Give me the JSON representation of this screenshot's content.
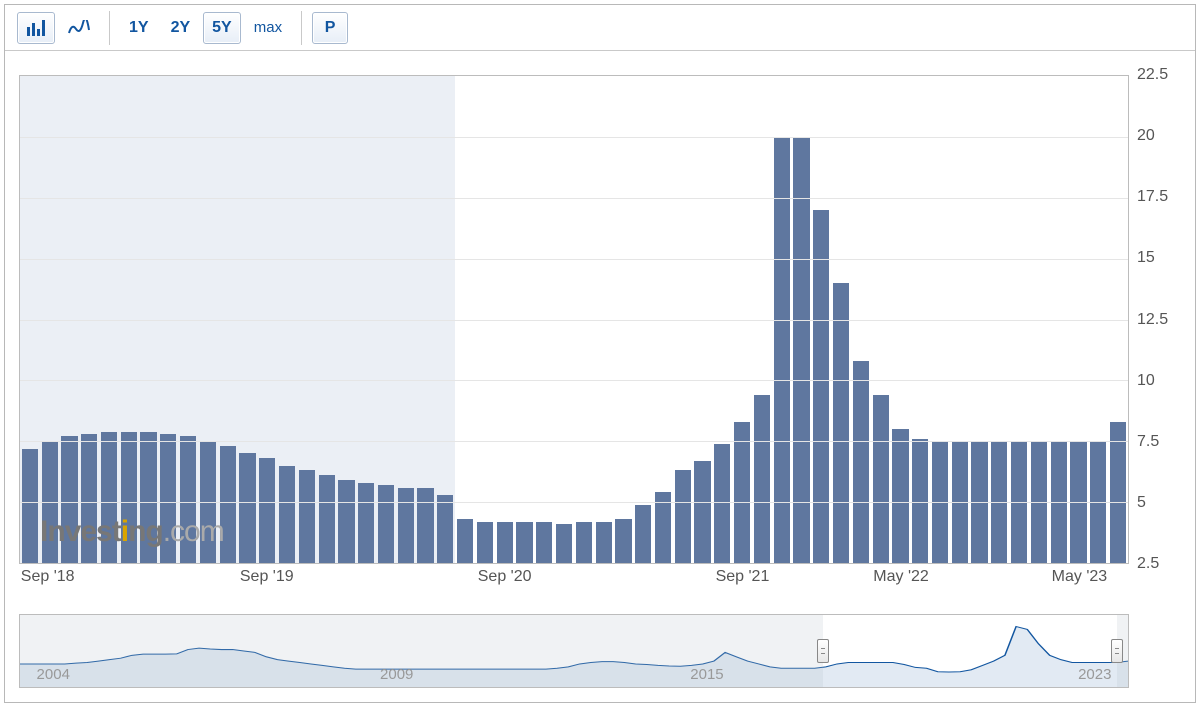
{
  "toolbar": {
    "ranges": [
      {
        "label": "1Y",
        "active": false
      },
      {
        "label": "2Y",
        "active": false
      },
      {
        "label": "5Y",
        "active": true
      },
      {
        "label": "max",
        "active": false
      }
    ],
    "p_label": "P"
  },
  "chart": {
    "type": "bar",
    "ymin": 2.5,
    "ymax": 22.5,
    "yticks": [
      2.5,
      5,
      7.5,
      10,
      12.5,
      15,
      17.5,
      20,
      22.5
    ],
    "grid_color": "#e5e5e5",
    "bar_color": "#5f779f",
    "bar_gap_ratio": 0.18,
    "background_color": "#ffffff",
    "highlight_start_index": 0,
    "highlight_end_index": 21,
    "highlight_color": "rgba(120,150,190,0.15)",
    "values": [
      7.2,
      7.5,
      7.7,
      7.8,
      7.9,
      7.9,
      7.9,
      7.8,
      7.7,
      7.5,
      7.3,
      7.0,
      6.8,
      6.5,
      6.3,
      6.1,
      5.9,
      5.8,
      5.7,
      5.6,
      5.6,
      5.3,
      4.3,
      4.2,
      4.2,
      4.2,
      4.2,
      4.1,
      4.2,
      4.2,
      4.3,
      4.9,
      5.4,
      6.3,
      6.7,
      7.4,
      8.3,
      9.4,
      20.0,
      20.0,
      17.0,
      14.0,
      10.8,
      9.4,
      8.0,
      7.6,
      7.5,
      7.5,
      7.5,
      7.5,
      7.5,
      7.5,
      7.5,
      7.5,
      7.5,
      8.3
    ],
    "xticks": [
      {
        "index": 0,
        "label": "Sep '18",
        "first": true
      },
      {
        "index": 12,
        "label": "Sep '19",
        "first": false
      },
      {
        "index": 24,
        "label": "Sep '20",
        "first": false
      },
      {
        "index": 36,
        "label": "Sep '21",
        "first": false
      },
      {
        "index": 44,
        "label": "May '22",
        "first": false
      },
      {
        "index": 53,
        "label": "May '23",
        "first": false
      }
    ]
  },
  "watermark": {
    "invest": "Invest",
    "i": "i",
    "ng": "ng",
    "com": ".com"
  },
  "navigator": {
    "labels": [
      {
        "pos_pct": 3,
        "text": "2004"
      },
      {
        "pos_pct": 34,
        "text": "2009"
      },
      {
        "pos_pct": 62,
        "text": "2015"
      },
      {
        "pos_pct": 97,
        "text": "2023"
      }
    ],
    "selection_start_pct": 72.5,
    "selection_end_pct": 99.0,
    "line_color": "#1256a0",
    "fill_color": "rgba(18,86,160,0.12)",
    "mask_color": "rgba(180,190,200,0.20)",
    "spark_ymin": 0,
    "spark_ymax": 22,
    "spark": [
      7,
      7,
      7,
      7,
      7,
      7.3,
      7.5,
      8,
      8.5,
      9,
      10,
      10.4,
      10.4,
      10.4,
      10.5,
      12,
      12.5,
      12.2,
      12,
      12,
      11.5,
      11,
      9.5,
      8.5,
      8,
      7.5,
      7,
      6.5,
      6,
      5.5,
      5.2,
      5.2,
      5.2,
      5.2,
      5.2,
      5.2,
      5.2,
      5.2,
      5.2,
      5.2,
      5.2,
      5.2,
      5.2,
      5.2,
      5.2,
      5.2,
      5.2,
      5.2,
      5.5,
      6,
      7,
      7.5,
      7.8,
      7.8,
      7.5,
      7,
      6.8,
      6.5,
      6.3,
      6.2,
      6.5,
      7,
      8,
      11,
      9.5,
      8,
      7,
      6,
      5.5,
      5.5,
      5.5,
      5.5,
      6,
      7,
      7.5,
      7.5,
      7.5,
      7.5,
      7.5,
      6.8,
      5.8,
      5.5,
      4.3,
      4.2,
      4.3,
      5,
      6.5,
      8,
      10,
      20,
      19,
      14,
      10,
      8.5,
      7.5,
      7.5,
      7.5,
      7.5,
      7.5,
      8
    ]
  }
}
